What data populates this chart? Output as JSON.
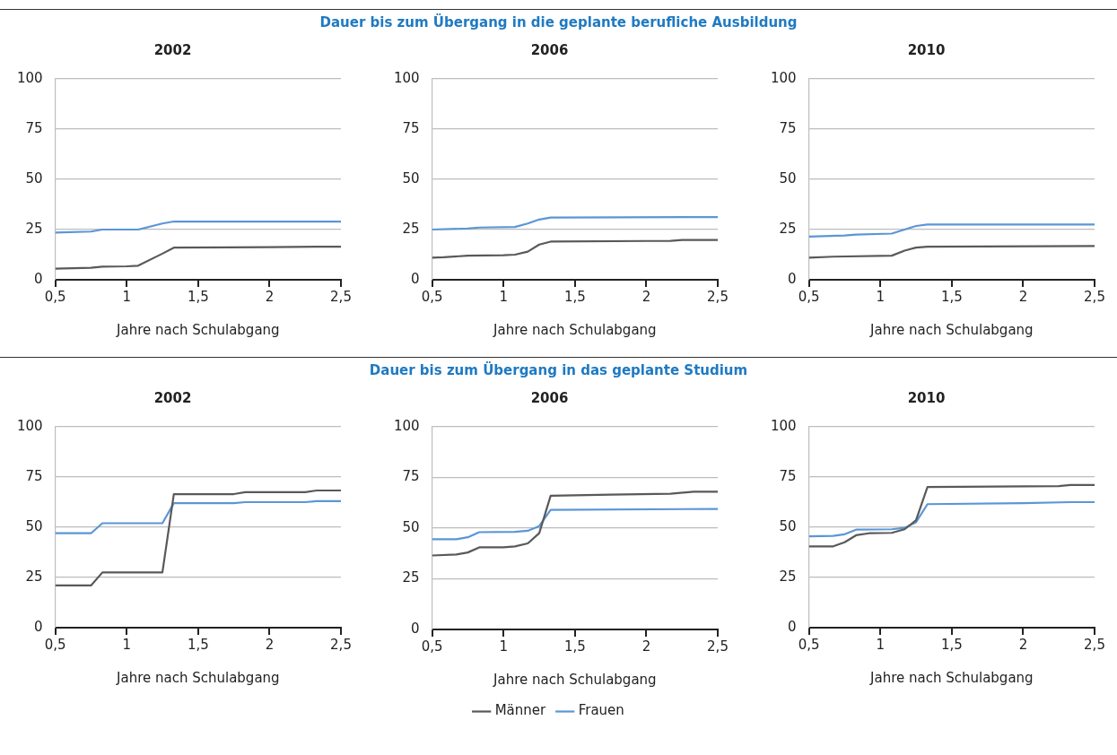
{
  "chart_data": [
    {
      "type": "other",
      "title": "Dauer bis zum Übergang in die geplante berufliche Ausbildung"
    },
    {
      "type": "line",
      "title": "2002",
      "xlabel": "Jahre nach Schulabgang",
      "xlim": [
        0.5,
        2.5
      ],
      "xticks": [
        {
          "value": 0.5,
          "label": "0,5"
        },
        {
          "value": 1,
          "label": "1"
        },
        {
          "value": 1.5,
          "label": "1,5"
        },
        {
          "value": 2,
          "label": "2"
        },
        {
          "value": 2.5,
          "label": "2,5"
        }
      ],
      "ylim": [
        0,
        100
      ],
      "yticks": [
        0,
        25,
        50,
        75,
        100
      ],
      "grid": "y",
      "legend": false,
      "marker": "none",
      "line_style": "solid",
      "series": [
        {
          "color": "#595959",
          "x": [
            0.5,
            0.75,
            0.83,
            1.0,
            1.08,
            1.25,
            1.33,
            2.0,
            2.33,
            2.5
          ],
          "values": [
            5.5,
            6,
            6.5,
            6.7,
            7,
            13,
            16,
            16.2,
            16.5,
            16.5
          ]
        },
        {
          "color": "#5b96d6",
          "x": [
            0.5,
            0.75,
            0.83,
            1.08,
            1.25,
            1.33,
            2.5
          ],
          "values": [
            23.5,
            24,
            25,
            25,
            28,
            29,
            29
          ]
        }
      ]
    },
    {
      "type": "line",
      "title": "2006",
      "xlabel": "Jahre nach Schulabgang",
      "xlim": [
        0.5,
        2.5
      ],
      "xticks": [
        {
          "value": 0.5,
          "label": "0,5"
        },
        {
          "value": 1,
          "label": "1"
        },
        {
          "value": 1.5,
          "label": "1,5"
        },
        {
          "value": 2,
          "label": "2"
        },
        {
          "value": 2.5,
          "label": "2,5"
        }
      ],
      "ylim": [
        0,
        100
      ],
      "yticks": [
        0,
        25,
        50,
        75,
        100
      ],
      "grid": "y",
      "legend": false,
      "marker": "none",
      "line_style": "solid",
      "series": [
        {
          "color": "#595959",
          "x": [
            0.5,
            0.58,
            0.75,
            1.0,
            1.08,
            1.17,
            1.25,
            1.33,
            2.0,
            2.17,
            2.25,
            2.5
          ],
          "values": [
            11,
            11.2,
            12,
            12.2,
            12.5,
            14,
            17.5,
            19,
            19.3,
            19.4,
            19.8,
            19.8
          ]
        },
        {
          "color": "#5b96d6",
          "x": [
            0.5,
            0.75,
            0.83,
            1.08,
            1.17,
            1.25,
            1.33,
            2.5
          ],
          "values": [
            25,
            25.5,
            26,
            26.3,
            28,
            30,
            31,
            31.2
          ]
        }
      ]
    },
    {
      "type": "line",
      "title": "2010",
      "xlabel": "Jahre nach Schulabgang",
      "xlim": [
        0.5,
        2.5
      ],
      "xticks": [
        {
          "value": 0.5,
          "label": "0,5"
        },
        {
          "value": 1,
          "label": "1"
        },
        {
          "value": 1.5,
          "label": "1,5"
        },
        {
          "value": 2,
          "label": "2"
        },
        {
          "value": 2.5,
          "label": "2,5"
        }
      ],
      "ylim": [
        0,
        100
      ],
      "yticks": [
        0,
        25,
        50,
        75,
        100
      ],
      "grid": "y",
      "legend": false,
      "marker": "none",
      "line_style": "solid",
      "series": [
        {
          "color": "#595959",
          "x": [
            0.5,
            0.67,
            1.08,
            1.17,
            1.25,
            1.33,
            2.5
          ],
          "values": [
            11,
            11.5,
            12,
            14.5,
            16,
            16.5,
            16.8
          ]
        },
        {
          "color": "#5b96d6",
          "x": [
            0.5,
            0.75,
            0.83,
            1.08,
            1.17,
            1.25,
            1.33,
            2.5
          ],
          "values": [
            21.5,
            22,
            22.5,
            23,
            25,
            26.8,
            27.5,
            27.5
          ]
        }
      ]
    },
    {
      "type": "other",
      "title": "Dauer bis zum Übergang in das geplante Studium"
    },
    {
      "type": "line",
      "title": "2002",
      "xlabel": "Jahre nach Schulabgang",
      "xlim": [
        0.5,
        2.5
      ],
      "xticks": [
        {
          "value": 0.5,
          "label": "0,5"
        },
        {
          "value": 1,
          "label": "1"
        },
        {
          "value": 1.5,
          "label": "1,5"
        },
        {
          "value": 2,
          "label": "2"
        },
        {
          "value": 2.5,
          "label": "2,5"
        }
      ],
      "ylim": [
        0,
        100
      ],
      "yticks": [
        0,
        25,
        50,
        75,
        100
      ],
      "grid": "y",
      "legend": false,
      "marker": "none",
      "line_style": "solid",
      "series": [
        {
          "color": "#595959",
          "x": [
            0.5,
            0.75,
            0.83,
            1.25,
            1.33,
            1.75,
            1.83,
            2.25,
            2.33,
            2.5
          ],
          "values": [
            21,
            21,
            27.5,
            27.5,
            66.5,
            66.5,
            67.5,
            67.5,
            68.3,
            68.3
          ]
        },
        {
          "color": "#5b96d6",
          "x": [
            0.5,
            0.75,
            0.83,
            1.25,
            1.33,
            1.75,
            1.83,
            2.25,
            2.33,
            2.5
          ],
          "values": [
            47,
            47,
            52,
            52,
            62,
            62,
            62.5,
            62.5,
            63,
            63
          ]
        }
      ]
    },
    {
      "type": "line",
      "title": "2006",
      "xlabel": "Jahre nach Schulabgang",
      "xlim": [
        0.5,
        2.5
      ],
      "xticks": [
        {
          "value": 0.5,
          "label": "0,5"
        },
        {
          "value": 1,
          "label": "1"
        },
        {
          "value": 1.5,
          "label": "1,5"
        },
        {
          "value": 2,
          "label": "2"
        },
        {
          "value": 2.5,
          "label": "2,5"
        }
      ],
      "ylim": [
        0,
        100
      ],
      "yticks": [
        0,
        25,
        50,
        75,
        100
      ],
      "grid": "y",
      "legend": "bottom",
      "marker": "none",
      "line_style": "solid",
      "series": [
        {
          "name": "Männer",
          "color": "#595959",
          "x": [
            0.5,
            0.67,
            0.75,
            0.83,
            1.0,
            1.08,
            1.17,
            1.25,
            1.33,
            1.75,
            2.17,
            2.33,
            2.5
          ],
          "values": [
            36.5,
            37,
            38,
            40.5,
            40.5,
            41,
            42.5,
            47.5,
            66,
            66.5,
            67,
            68,
            68
          ]
        },
        {
          "name": "Frauen",
          "color": "#5b96d6",
          "x": [
            0.5,
            0.67,
            0.75,
            0.83,
            1.08,
            1.17,
            1.25,
            1.33,
            2.5
          ],
          "values": [
            44.5,
            44.5,
            45.5,
            48,
            48.2,
            48.7,
            51,
            59,
            59.5
          ]
        }
      ]
    },
    {
      "type": "line",
      "title": "2010",
      "xlabel": "Jahre nach Schulabgang",
      "xlim": [
        0.5,
        2.5
      ],
      "xticks": [
        {
          "value": 0.5,
          "label": "0,5"
        },
        {
          "value": 1,
          "label": "1"
        },
        {
          "value": 1.5,
          "label": "1,5"
        },
        {
          "value": 2,
          "label": "2"
        },
        {
          "value": 2.5,
          "label": "2,5"
        }
      ],
      "ylim": [
        0,
        100
      ],
      "yticks": [
        0,
        25,
        50,
        75,
        100
      ],
      "grid": "y",
      "legend": false,
      "marker": "none",
      "line_style": "solid",
      "series": [
        {
          "color": "#595959",
          "x": [
            0.5,
            0.67,
            0.75,
            0.83,
            0.92,
            1.08,
            1.17,
            1.25,
            1.33,
            2.25,
            2.33,
            2.5
          ],
          "values": [
            40.5,
            40.5,
            42.5,
            46,
            47,
            47.2,
            49,
            53.5,
            70,
            70.5,
            71,
            71
          ]
        },
        {
          "color": "#5b96d6",
          "x": [
            0.5,
            0.67,
            0.75,
            0.83,
            1.08,
            1.17,
            1.25,
            1.33,
            2.0,
            2.33,
            2.5
          ],
          "values": [
            45.5,
            45.7,
            46.5,
            48.8,
            49,
            49.7,
            52.5,
            61.5,
            62,
            62.5,
            62.5
          ]
        }
      ]
    }
  ]
}
